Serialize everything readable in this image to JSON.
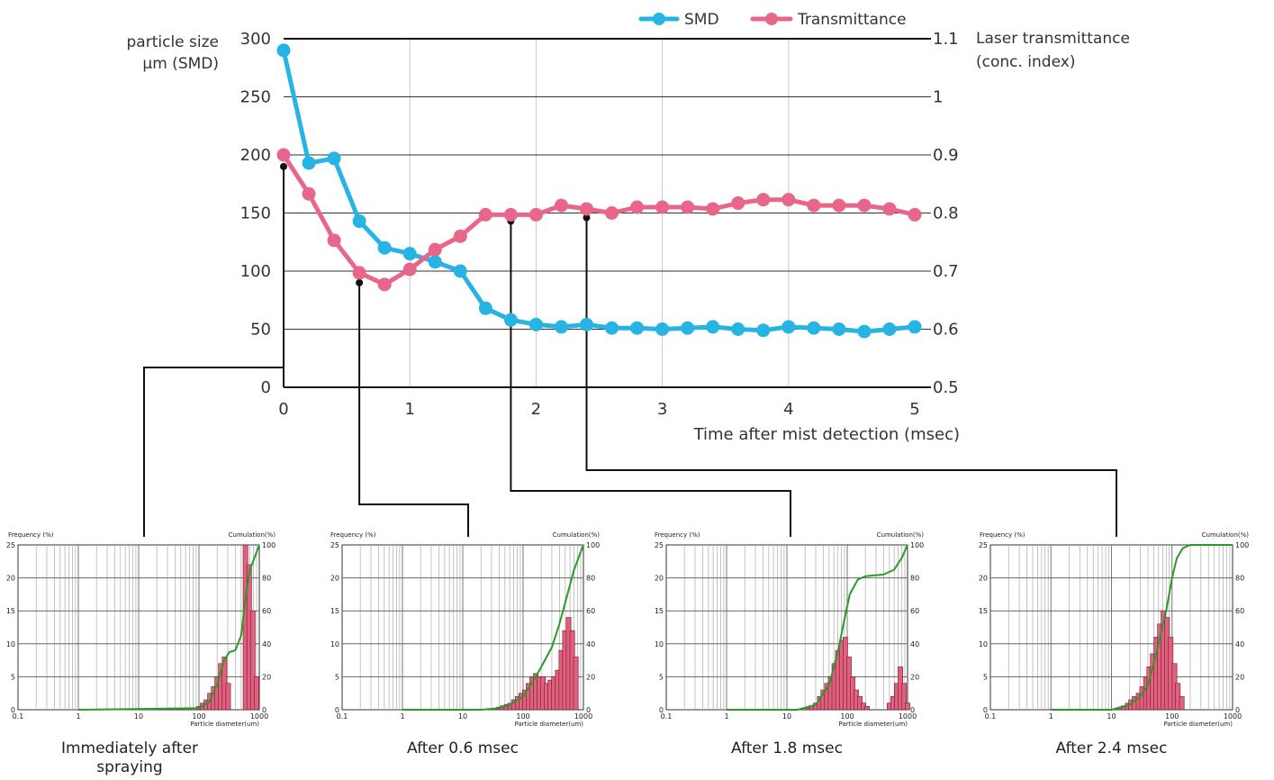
{
  "chart_data": [
    {
      "type": "line",
      "xlabel": "Time after mist detection (msec)",
      "ylabel": "particle size",
      "ylabel2": "μm (SMD)",
      "y2label": "Laser transmittance",
      "y2label2": "(conc. index)",
      "xlim": [
        0,
        5
      ],
      "ylim": [
        0,
        300
      ],
      "y2lim": [
        0.5,
        1.1
      ],
      "xticks": [
        "0",
        "1",
        "2",
        "3",
        "4",
        "5"
      ],
      "yticks": [
        "0",
        "50",
        "100",
        "150",
        "200",
        "250",
        "300"
      ],
      "y2ticks": [
        "0.5",
        "0.6",
        "0.7",
        "0.8",
        "0.9",
        "1",
        "1.1"
      ],
      "legend_position": "top-right",
      "series": [
        {
          "name": "SMD",
          "axis": "left",
          "color": "#27b4e4",
          "x": [
            0,
            0.2,
            0.4,
            0.6,
            0.8,
            1.0,
            1.2,
            1.4,
            1.6,
            1.8,
            2.0,
            2.2,
            2.4,
            2.6,
            2.8,
            3.0,
            3.2,
            3.4,
            3.6,
            3.8,
            4.0,
            4.2,
            4.4,
            4.6,
            4.8,
            5.0
          ],
          "values": [
            290,
            193,
            197,
            143,
            120,
            115,
            108,
            100,
            68,
            58,
            54,
            52,
            54,
            51,
            51,
            50,
            51,
            52,
            50,
            49,
            52,
            51,
            50,
            48,
            50,
            52
          ]
        },
        {
          "name": "Transmittance",
          "axis": "right",
          "color": "#e8668a",
          "x": [
            0,
            0.2,
            0.4,
            0.6,
            0.8,
            1.0,
            1.2,
            1.4,
            1.6,
            1.8,
            2.0,
            2.2,
            2.4,
            2.6,
            2.8,
            3.0,
            3.2,
            3.4,
            3.6,
            3.8,
            4.0,
            4.2,
            4.4,
            4.6,
            4.8,
            5.0
          ],
          "values": [
            0.9,
            0.833,
            0.753,
            0.697,
            0.677,
            0.703,
            0.737,
            0.76,
            0.797,
            0.797,
            0.797,
            0.813,
            0.807,
            0.8,
            0.81,
            0.81,
            0.81,
            0.807,
            0.817,
            0.823,
            0.823,
            0.813,
            0.813,
            0.813,
            0.807,
            0.797
          ]
        }
      ],
      "callouts": [
        {
          "x": 0,
          "y": 190,
          "target": 0
        },
        {
          "x": 0.6,
          "y": 90,
          "target": 1
        },
        {
          "x": 1.8,
          "y": 143,
          "target": 2
        },
        {
          "x": 2.4,
          "y": 146,
          "target": 3
        }
      ]
    },
    {
      "type": "bar",
      "caption": "Immediately after spraying",
      "ylabel": "Frequency (%)",
      "y2label": "Cumulation(%)",
      "xlabel": "Particle diameter(um)",
      "xscale": "log",
      "xlim": [
        0.1,
        1000
      ],
      "ylim": [
        0,
        25
      ],
      "y2lim": [
        0,
        100
      ],
      "xticks": [
        "0.1",
        "1",
        "10",
        "100",
        "1000"
      ],
      "yticks": [
        "0",
        "5",
        "10",
        "15",
        "20",
        "25"
      ],
      "y2ticks": [
        "0",
        "20",
        "40",
        "60",
        "80",
        "100"
      ],
      "bar_color": "#e0607e",
      "line_color": "#2a9a2a",
      "bins": [
        [
          100,
          0.5
        ],
        [
          115,
          1
        ],
        [
          132,
          1.5
        ],
        [
          152,
          2.5
        ],
        [
          175,
          3.5
        ],
        [
          200,
          5
        ],
        [
          230,
          7
        ],
        [
          265,
          8
        ],
        [
          305,
          4
        ],
        [
          590,
          25
        ],
        [
          680,
          22
        ],
        [
          780,
          15
        ],
        [
          900,
          5
        ]
      ],
      "cumulative": [
        [
          1,
          0
        ],
        [
          100,
          1
        ],
        [
          150,
          5
        ],
        [
          200,
          15
        ],
        [
          260,
          30
        ],
        [
          320,
          35
        ],
        [
          400,
          36
        ],
        [
          500,
          45
        ],
        [
          600,
          70
        ],
        [
          700,
          85
        ],
        [
          1000,
          100
        ]
      ]
    },
    {
      "type": "bar",
      "caption": "After 0.6 msec",
      "ylabel": "Frequency (%)",
      "y2label": "Cumulation(%)",
      "xlabel": "Particle diameter(um)",
      "xscale": "log",
      "xlim": [
        0.1,
        1000
      ],
      "ylim": [
        0,
        25
      ],
      "y2lim": [
        0,
        100
      ],
      "xticks": [
        "0.1",
        "1",
        "10",
        "100",
        "1000"
      ],
      "yticks": [
        "0",
        "5",
        "10",
        "15",
        "20",
        "25"
      ],
      "y2ticks": [
        "0",
        "20",
        "40",
        "60",
        "80",
        "100"
      ],
      "bar_color": "#e0607e",
      "line_color": "#2a9a2a",
      "bins": [
        [
          35,
          0.2
        ],
        [
          40,
          0.4
        ],
        [
          46,
          0.6
        ],
        [
          53,
          0.8
        ],
        [
          61,
          1
        ],
        [
          70,
          1.5
        ],
        [
          81,
          2
        ],
        [
          93,
          2.5
        ],
        [
          107,
          3
        ],
        [
          123,
          4
        ],
        [
          141,
          5
        ],
        [
          162,
          5.5
        ],
        [
          186,
          5
        ],
        [
          214,
          5
        ],
        [
          246,
          4
        ],
        [
          283,
          4.5
        ],
        [
          325,
          5
        ],
        [
          374,
          6
        ],
        [
          430,
          9
        ],
        [
          494,
          12
        ],
        [
          568,
          14
        ],
        [
          653,
          12
        ],
        [
          750,
          8
        ]
      ],
      "cumulative": [
        [
          1,
          0
        ],
        [
          20,
          0
        ],
        [
          40,
          1
        ],
        [
          60,
          3
        ],
        [
          100,
          8
        ],
        [
          150,
          18
        ],
        [
          200,
          26
        ],
        [
          300,
          38
        ],
        [
          400,
          52
        ],
        [
          500,
          65
        ],
        [
          700,
          85
        ],
        [
          1000,
          100
        ]
      ]
    },
    {
      "type": "bar",
      "caption": "After 1.8 msec",
      "ylabel": "Frequency (%)",
      "y2label": "Cumulation(%)",
      "xlabel": "Particle diameter(um)",
      "xscale": "log",
      "xlim": [
        0.1,
        1000
      ],
      "ylim": [
        0,
        25
      ],
      "y2lim": [
        0,
        100
      ],
      "xticks": [
        "0.1",
        "1",
        "10",
        "100",
        "1000"
      ],
      "yticks": [
        "0",
        "5",
        "10",
        "15",
        "20",
        "25"
      ],
      "y2ticks": [
        "0",
        "20",
        "40",
        "60",
        "80",
        "100"
      ],
      "bar_color": "#e0607e",
      "line_color": "#2a9a2a",
      "bins": [
        [
          22,
          0.3
        ],
        [
          26,
          0.6
        ],
        [
          30,
          1
        ],
        [
          35,
          2
        ],
        [
          40,
          3
        ],
        [
          46,
          4
        ],
        [
          53,
          5
        ],
        [
          61,
          7
        ],
        [
          70,
          9
        ],
        [
          81,
          10.5
        ],
        [
          93,
          11
        ],
        [
          107,
          8
        ],
        [
          123,
          5
        ],
        [
          141,
          3
        ],
        [
          162,
          2
        ],
        [
          186,
          1
        ],
        [
          214,
          0.5
        ],
        [
          500,
          1
        ],
        [
          575,
          2
        ],
        [
          660,
          4
        ],
        [
          760,
          6.5
        ],
        [
          875,
          4
        ],
        [
          1000,
          1
        ]
      ],
      "cumulative": [
        [
          1,
          0
        ],
        [
          15,
          0
        ],
        [
          30,
          3
        ],
        [
          50,
          15
        ],
        [
          70,
          35
        ],
        [
          90,
          55
        ],
        [
          110,
          70
        ],
        [
          150,
          79
        ],
        [
          200,
          81
        ],
        [
          400,
          82
        ],
        [
          600,
          85
        ],
        [
          800,
          92
        ],
        [
          1000,
          100
        ]
      ]
    },
    {
      "type": "bar",
      "caption": "After 2.4 msec",
      "ylabel": "Frequency (%)",
      "y2label": "Cumulation(%)",
      "xlabel": "Particle diameter(um)",
      "xscale": "log",
      "xlim": [
        0.1,
        1000
      ],
      "ylim": [
        0,
        25
      ],
      "y2lim": [
        0,
        100
      ],
      "xticks": [
        "0.1",
        "1",
        "10",
        "100",
        "1000"
      ],
      "yticks": [
        "0",
        "5",
        "10",
        "15",
        "20",
        "25"
      ],
      "y2ticks": [
        "0",
        "20",
        "40",
        "60",
        "80",
        "100"
      ],
      "bar_color": "#e0607e",
      "line_color": "#2a9a2a",
      "bins": [
        [
          12,
          0.2
        ],
        [
          14,
          0.4
        ],
        [
          16,
          0.6
        ],
        [
          18.5,
          1
        ],
        [
          21,
          1.5
        ],
        [
          24,
          2
        ],
        [
          28,
          2.5
        ],
        [
          32,
          3.5
        ],
        [
          37,
          5
        ],
        [
          42,
          6.5
        ],
        [
          48,
          8.5
        ],
        [
          55,
          11
        ],
        [
          63,
          13
        ],
        [
          72,
          15
        ],
        [
          83,
          14
        ],
        [
          95,
          11
        ],
        [
          110,
          7
        ],
        [
          125,
          4
        ],
        [
          145,
          2
        ]
      ],
      "cumulative": [
        [
          1,
          0
        ],
        [
          10,
          0
        ],
        [
          20,
          3
        ],
        [
          30,
          8
        ],
        [
          40,
          15
        ],
        [
          50,
          28
        ],
        [
          60,
          40
        ],
        [
          80,
          60
        ],
        [
          100,
          80
        ],
        [
          120,
          92
        ],
        [
          150,
          98
        ],
        [
          200,
          100
        ],
        [
          1000,
          100
        ]
      ]
    }
  ]
}
